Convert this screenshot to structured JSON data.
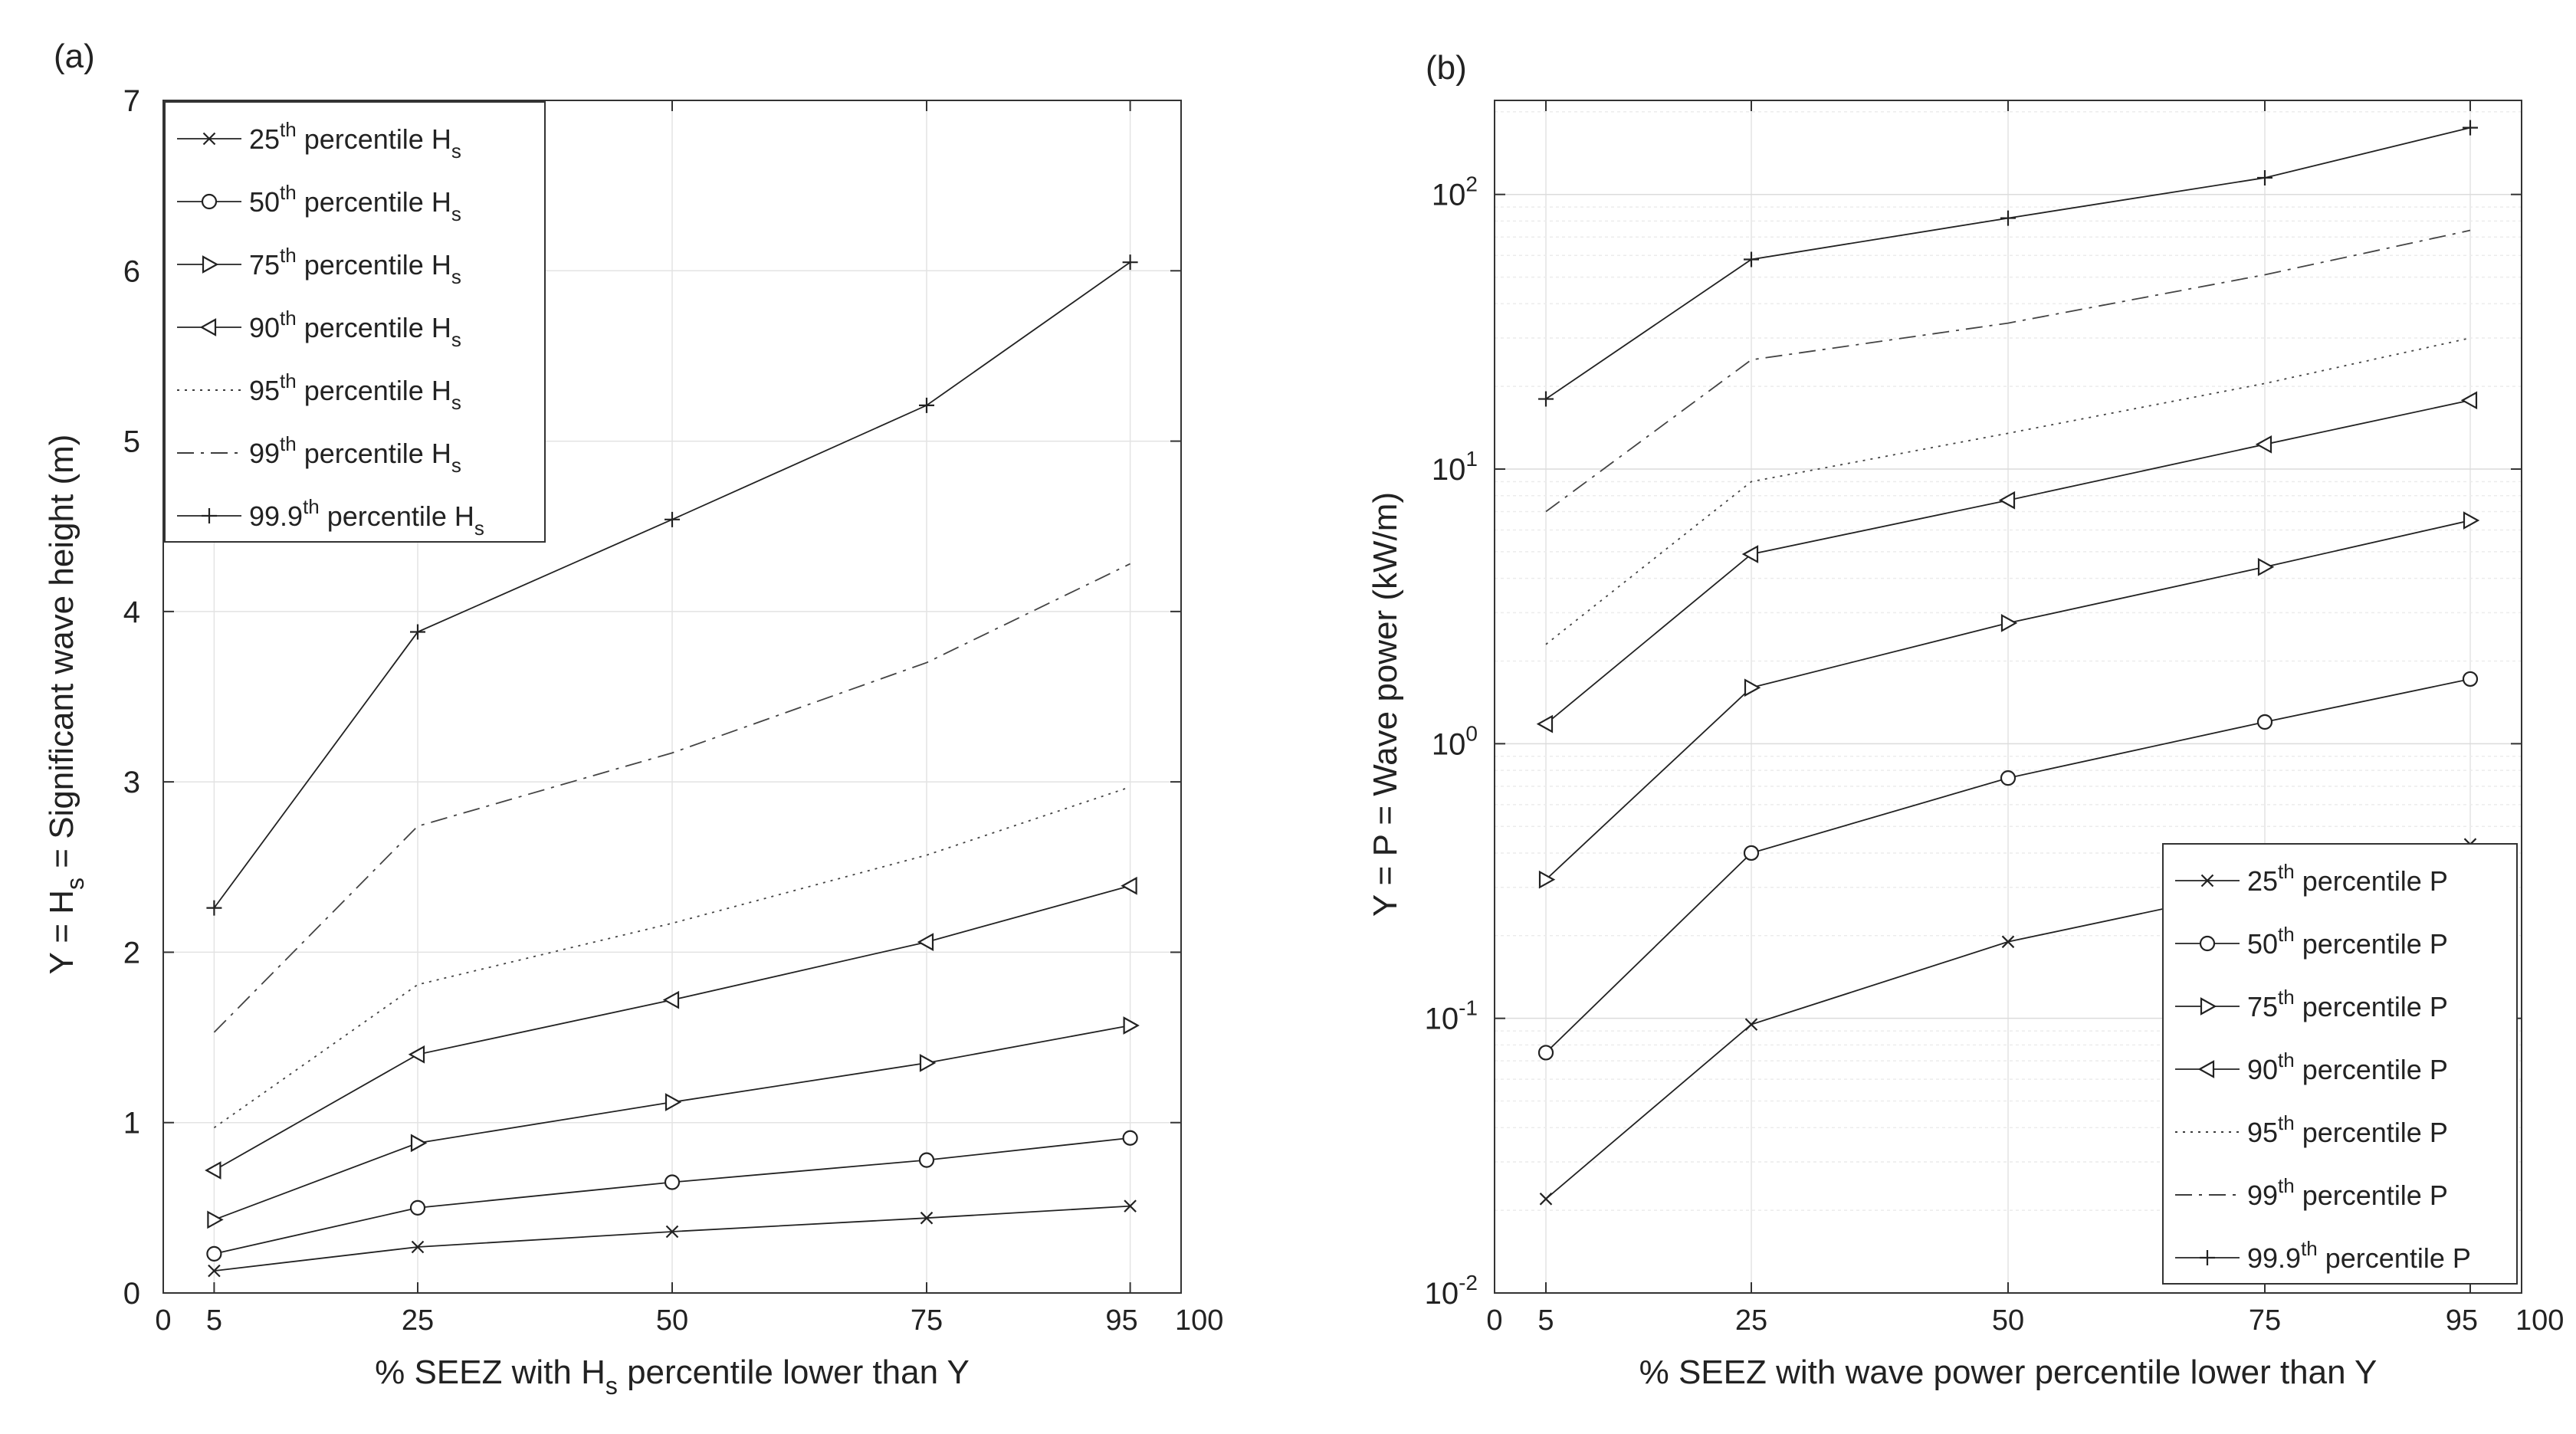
{
  "chart_data": [
    {
      "panel_label": "(a)",
      "type": "line",
      "yscale": "linear",
      "xlabel_parts": [
        "% SEEZ with H",
        "s",
        " percentile lower than Y"
      ],
      "ylabel_parts": [
        "Y = H",
        "s",
        " = Significant wave height (m)"
      ],
      "x": [
        5,
        25,
        50,
        75,
        95
      ],
      "xlim": [
        0,
        100
      ],
      "xticks": [
        0,
        5,
        25,
        50,
        75,
        95,
        100
      ],
      "ylim": [
        0,
        7
      ],
      "yticks": [
        0,
        1,
        2,
        3,
        4,
        5,
        6,
        7
      ],
      "grid": true,
      "legend_position": "top-left",
      "series": [
        {
          "name": "25th percentile Hs",
          "label_base": "25",
          "label_sup": "th",
          "label_text": " percentile H",
          "label_sub": "s",
          "marker": "x",
          "line": "solid",
          "values": [
            0.13,
            0.27,
            0.36,
            0.44,
            0.51
          ]
        },
        {
          "name": "50th percentile Hs",
          "label_base": "50",
          "label_sup": "th",
          "label_text": " percentile H",
          "label_sub": "s",
          "marker": "o",
          "line": "solid",
          "values": [
            0.23,
            0.5,
            0.65,
            0.78,
            0.91
          ]
        },
        {
          "name": "75th percentile Hs",
          "label_base": "75",
          "label_sup": "th",
          "label_text": " percentile H",
          "label_sub": "s",
          "marker": "tri-right",
          "line": "solid",
          "values": [
            0.43,
            0.88,
            1.12,
            1.35,
            1.57
          ]
        },
        {
          "name": "90th percentile Hs",
          "label_base": "90",
          "label_sup": "th",
          "label_text": " percentile H",
          "label_sub": "s",
          "marker": "tri-left",
          "line": "solid",
          "values": [
            0.72,
            1.4,
            1.72,
            2.06,
            2.39
          ]
        },
        {
          "name": "95th percentile Hs",
          "label_base": "95",
          "label_sup": "th",
          "label_text": " percentile H",
          "label_sub": "s",
          "marker": "none",
          "line": "dotted",
          "values": [
            0.97,
            1.81,
            2.17,
            2.57,
            2.97
          ]
        },
        {
          "name": "99th percentile Hs",
          "label_base": "99",
          "label_sup": "th",
          "label_text": " percentile H",
          "label_sub": "s",
          "marker": "none",
          "line": "dashdot",
          "values": [
            1.53,
            2.74,
            3.17,
            3.7,
            4.28
          ]
        },
        {
          "name": "99.9th percentile Hs",
          "label_base": "99.9",
          "label_sup": "th",
          "label_text": " percentile H",
          "label_sub": "s",
          "marker": "+",
          "line": "solid",
          "values": [
            2.26,
            3.88,
            4.54,
            5.21,
            6.05
          ]
        }
      ]
    },
    {
      "panel_label": "(b)",
      "type": "line",
      "yscale": "log",
      "xlabel_parts": [
        "% SEEZ with wave power percentile lower than Y",
        "",
        ""
      ],
      "ylabel_parts": [
        "Y = P = Wave power (kW/m)",
        "",
        ""
      ],
      "x": [
        5,
        25,
        50,
        75,
        95
      ],
      "xlim": [
        0,
        100
      ],
      "xticks": [
        0,
        5,
        25,
        50,
        75,
        95,
        100
      ],
      "ylim": [
        0.01,
        220
      ],
      "yticks": [
        0.01,
        0.1,
        1,
        10,
        100
      ],
      "ytick_exponents": [
        "-2",
        "-1",
        "0",
        "1",
        "2"
      ],
      "ytick_base": "10",
      "grid": true,
      "legend_position": "bottom-right",
      "series": [
        {
          "name": "25th percentile P",
          "label_base": "25",
          "label_sup": "th",
          "label_text": " percentile P",
          "label_sub": "",
          "marker": "x",
          "line": "solid",
          "values": [
            0.022,
            0.095,
            0.19,
            0.3,
            0.43
          ]
        },
        {
          "name": "50th percentile P",
          "label_base": "50",
          "label_sup": "th",
          "label_text": " percentile P",
          "label_sub": "",
          "marker": "o",
          "line": "solid",
          "values": [
            0.075,
            0.4,
            0.75,
            1.2,
            1.72
          ]
        },
        {
          "name": "75th percentile P",
          "label_base": "75",
          "label_sup": "th",
          "label_text": " percentile P",
          "label_sub": "",
          "marker": "tri-right",
          "line": "solid",
          "values": [
            0.32,
            1.6,
            2.75,
            4.4,
            6.5
          ]
        },
        {
          "name": "90th percentile P",
          "label_base": "90",
          "label_sup": "th",
          "label_text": " percentile P",
          "label_sub": "",
          "marker": "tri-left",
          "line": "solid",
          "values": [
            1.18,
            4.9,
            7.7,
            12.3,
            17.8
          ]
        },
        {
          "name": "95th percentile P",
          "label_base": "95",
          "label_sup": "th",
          "label_text": " percentile P",
          "label_sub": "",
          "marker": "none",
          "line": "dotted",
          "values": [
            2.3,
            9,
            13.5,
            20.5,
            30
          ]
        },
        {
          "name": "99th percentile P",
          "label_base": "99",
          "label_sup": "th",
          "label_text": " percentile P",
          "label_sub": "",
          "marker": "none",
          "line": "dashdot",
          "values": [
            7,
            25,
            34,
            51,
            74
          ]
        },
        {
          "name": "99.9th percentile P",
          "label_base": "99.9",
          "label_sup": "th",
          "label_text": " percentile P",
          "label_sub": "",
          "marker": "+",
          "line": "solid",
          "values": [
            18,
            58,
            82,
            115,
            175
          ]
        }
      ]
    }
  ]
}
